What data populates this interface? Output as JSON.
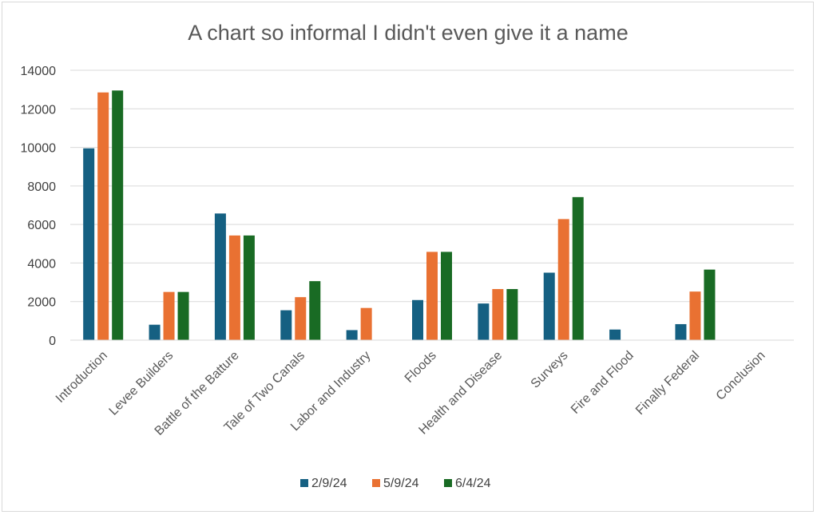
{
  "chart_data": {
    "type": "bar",
    "title": "A chart so informal I didn't even give it a name",
    "xlabel": "",
    "ylabel": "",
    "ylim": [
      0,
      14000
    ],
    "yticks": [
      0,
      2000,
      4000,
      6000,
      8000,
      10000,
      12000,
      14000
    ],
    "grid": true,
    "legend_position": "bottom",
    "categories": [
      "Introduction",
      "Levee Builders",
      "Battle of the Batture",
      "Tale of Two Canals",
      "Labor and Industry",
      "Floods",
      "Health and Disease",
      "Surveys",
      "Fire and Flood",
      "Finally Federal",
      "Conclusion"
    ],
    "series": [
      {
        "name": "2/9/24",
        "color": "#156082",
        "values": [
          9950,
          800,
          6570,
          1550,
          520,
          2080,
          1900,
          3500,
          550,
          830,
          0
        ]
      },
      {
        "name": "5/9/24",
        "color": "#e97132",
        "values": [
          12850,
          2500,
          5430,
          2230,
          1670,
          4580,
          2650,
          6280,
          0,
          2520,
          0
        ]
      },
      {
        "name": "6/4/24",
        "color": "#196b24",
        "values": [
          12950,
          2500,
          5430,
          3060,
          0,
          4580,
          2650,
          7420,
          0,
          3660,
          0
        ]
      }
    ]
  }
}
